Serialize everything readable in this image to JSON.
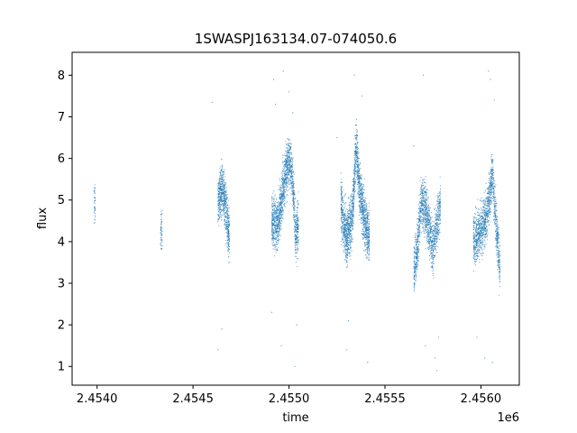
{
  "chart_data": {
    "type": "scatter",
    "title": "1SWASPJ163134.07-074050.6",
    "xlabel": "time",
    "ylabel": "flux",
    "x_offset_label": "1e6",
    "xlim": [
      2.45387,
      2.4562
    ],
    "ylim": [
      0.55,
      8.55
    ],
    "x_ticks": [
      2.454,
      2.4545,
      2.455,
      2.4555,
      2.456
    ],
    "x_tick_labels": [
      "2.4540",
      "2.4545",
      "2.4550",
      "2.4555",
      "2.4560"
    ],
    "y_ticks": [
      1,
      2,
      3,
      4,
      5,
      6,
      7,
      8
    ],
    "y_tick_labels": [
      "1",
      "2",
      "3",
      "4",
      "5",
      "6",
      "7",
      "8"
    ],
    "grid": false,
    "legend": "none",
    "color": "#1f77b4",
    "series": [
      {
        "clusters": [
          {
            "x": [
              2.453985,
              2.45399
            ],
            "y": [
              4.4,
              5.4
            ],
            "trend": [
              [
                2.453985,
                4.9
              ],
              [
                2.45399,
                4.9
              ]
            ],
            "spread": 0.5,
            "n": 40
          },
          {
            "x": [
              2.45433,
              2.45434
            ],
            "y": [
              3.5,
              5.0
            ],
            "trend": [
              [
                2.45433,
                4.2
              ],
              [
                2.45434,
                4.3
              ]
            ],
            "spread": 0.4,
            "n": 60
          },
          {
            "x": [
              2.45463,
              2.45469
            ],
            "y": [
              3.4,
              6.0
            ],
            "trend": [
              [
                2.45463,
                5.0
              ],
              [
                2.45465,
                5.3
              ],
              [
                2.45467,
                4.8
              ],
              [
                2.45469,
                4.1
              ]
            ],
            "spread": 0.55,
            "n": 700
          },
          {
            "x": [
              2.45491,
              2.45505
            ],
            "y": [
              2.6,
              6.6
            ],
            "trend": [
              [
                2.45491,
                4.5
              ],
              [
                2.45494,
                4.4
              ],
              [
                2.45497,
                5.3
              ],
              [
                2.455,
                6.0
              ],
              [
                2.45502,
                5.4
              ],
              [
                2.455035,
                4.2
              ],
              [
                2.45505,
                4.4
              ]
            ],
            "spread": 0.55,
            "n": 1500
          },
          {
            "x": [
              2.45527,
              2.45542
            ],
            "y": [
              2.6,
              7.2
            ],
            "trend": [
              [
                2.45527,
                4.8
              ],
              [
                2.4553,
                4.1
              ],
              [
                2.45533,
                4.6
              ],
              [
                2.45535,
                6.3
              ],
              [
                2.45537,
                5.2
              ],
              [
                2.4554,
                4.4
              ],
              [
                2.45542,
                4.0
              ]
            ],
            "spread": 0.6,
            "n": 1800
          },
          {
            "x": [
              2.45565,
              2.45579
            ],
            "y": [
              2.8,
              6.0
            ],
            "trend": [
              [
                2.45565,
                3.3
              ],
              [
                2.45567,
                3.9
              ],
              [
                2.45569,
                5.0
              ],
              [
                2.45572,
                4.6
              ],
              [
                2.45575,
                3.8
              ],
              [
                2.45577,
                4.4
              ],
              [
                2.45579,
                4.9
              ]
            ],
            "spread": 0.55,
            "n": 1300
          },
          {
            "x": [
              2.45596,
              2.4561
            ],
            "y": [
              2.6,
              6.4
            ],
            "trend": [
              [
                2.45596,
                4.0
              ],
              [
                2.45599,
                4.2
              ],
              [
                2.45603,
                4.6
              ],
              [
                2.45606,
                5.6
              ],
              [
                2.45608,
                4.4
              ],
              [
                2.4561,
                3.3
              ]
            ],
            "spread": 0.55,
            "n": 1300
          }
        ],
        "outliers": [
          {
            "x": 2.4546,
            "y": 7.35
          },
          {
            "x": 2.45463,
            "y": 1.4
          },
          {
            "x": 2.45465,
            "y": 1.9
          },
          {
            "x": 2.45492,
            "y": 7.9
          },
          {
            "x": 2.45493,
            "y": 7.3
          },
          {
            "x": 2.45497,
            "y": 8.1
          },
          {
            "x": 2.455,
            "y": 7.6
          },
          {
            "x": 2.45502,
            "y": 7.1
          },
          {
            "x": 2.45496,
            "y": 1.5
          },
          {
            "x": 2.45503,
            "y": 1.0
          },
          {
            "x": 2.45491,
            "y": 2.3
          },
          {
            "x": 2.45504,
            "y": 2.0
          },
          {
            "x": 2.45525,
            "y": 6.5
          },
          {
            "x": 2.45534,
            "y": 8.0
          },
          {
            "x": 2.45538,
            "y": 7.5
          },
          {
            "x": 2.4553,
            "y": 1.4
          },
          {
            "x": 2.45531,
            "y": 2.1
          },
          {
            "x": 2.45541,
            "y": 1.1
          },
          {
            "x": 2.45565,
            "y": 6.3
          },
          {
            "x": 2.4557,
            "y": 8.0
          },
          {
            "x": 2.45576,
            "y": 1.2
          },
          {
            "x": 2.45578,
            "y": 1.7
          },
          {
            "x": 2.45571,
            "y": 1.5
          },
          {
            "x": 2.45577,
            "y": 0.9
          },
          {
            "x": 2.45604,
            "y": 8.1
          },
          {
            "x": 2.45607,
            "y": 7.4
          },
          {
            "x": 2.45602,
            "y": 1.2
          },
          {
            "x": 2.45606,
            "y": 1.1
          },
          {
            "x": 2.45598,
            "y": 1.7
          },
          {
            "x": 2.45605,
            "y": 7.9
          }
        ]
      }
    ]
  }
}
